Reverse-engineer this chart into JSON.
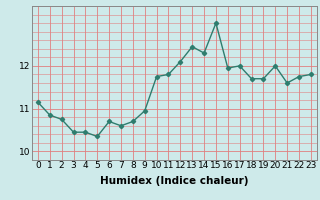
{
  "x": [
    0,
    1,
    2,
    3,
    4,
    5,
    6,
    7,
    8,
    9,
    10,
    11,
    12,
    13,
    14,
    15,
    16,
    17,
    18,
    19,
    20,
    21,
    22,
    23
  ],
  "y": [
    11.15,
    10.85,
    10.75,
    10.45,
    10.45,
    10.35,
    10.7,
    10.6,
    10.7,
    10.95,
    11.75,
    11.8,
    12.1,
    12.45,
    12.3,
    13.0,
    11.95,
    12.0,
    11.7,
    11.7,
    12.0,
    11.6,
    11.75,
    11.8
  ],
  "line_color": "#2e7d6e",
  "marker": "D",
  "marker_size": 2.2,
  "bg_color": "#ceeaea",
  "grid_color": "#e08080",
  "xlabel": "Humidex (Indice chaleur)",
  "ylim": [
    9.8,
    13.4
  ],
  "yticks": [
    10,
    11,
    12
  ],
  "xlim": [
    -0.5,
    23.5
  ],
  "xticks": [
    0,
    1,
    2,
    3,
    4,
    5,
    6,
    7,
    8,
    9,
    10,
    11,
    12,
    13,
    14,
    15,
    16,
    17,
    18,
    19,
    20,
    21,
    22,
    23
  ],
  "xlabel_fontsize": 7.5,
  "tick_fontsize": 6.5,
  "line_width": 1.0
}
